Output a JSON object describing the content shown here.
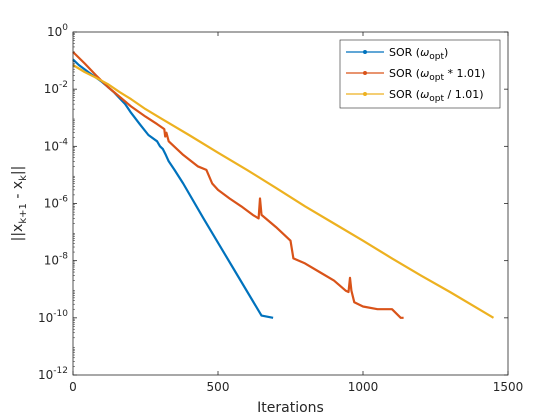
{
  "chart_data": {
    "type": "line",
    "title": "",
    "xlabel": "Iterations",
    "ylabel_parts": {
      "open": "||x",
      "sub1": "k+1",
      "mid": " - x",
      "sub2": "k",
      "close": "||"
    },
    "y_scale": "log",
    "xlim": [
      0,
      1500
    ],
    "ylim": [
      1e-12,
      1
    ],
    "x_ticks": [
      0,
      500,
      1000,
      1500
    ],
    "y_tick_exponents": [
      0,
      -2,
      -4,
      -6,
      -8,
      -10,
      -12
    ],
    "grid": false,
    "legend_position": "top-right",
    "series": [
      {
        "name": "SOR (ω_opt)",
        "legend_parts": [
          "SOR (",
          "ω",
          "opt",
          ")"
        ],
        "color": "#0072BD",
        "x": [
          0,
          20,
          60,
          100,
          140,
          180,
          200,
          230,
          260,
          290,
          300,
          310,
          320,
          330,
          350,
          380,
          450,
          550,
          650,
          690
        ],
        "y": [
          0.11,
          0.07,
          0.035,
          0.018,
          0.008,
          0.003,
          0.0015,
          0.0006,
          0.00025,
          0.00015,
          0.0001,
          8e-05,
          5e-05,
          3e-05,
          1.5e-05,
          5e-06,
          3e-07,
          6e-09,
          1.2e-10,
          1e-10
        ]
      },
      {
        "name": "SOR (ω_opt * 1.01)",
        "legend_parts": [
          "SOR (",
          "ω",
          "opt",
          " * 1.01)"
        ],
        "color": "#D95319",
        "x": [
          0,
          40,
          80,
          120,
          160,
          200,
          250,
          290,
          315,
          318,
          322,
          330,
          380,
          430,
          460,
          480,
          500,
          540,
          580,
          620,
          640,
          645,
          650,
          700,
          750,
          760,
          800,
          850,
          900,
          940,
          950,
          955,
          960,
          970,
          1000,
          1050,
          1100,
          1130,
          1140
        ],
        "y": [
          0.2,
          0.08,
          0.03,
          0.012,
          0.0055,
          0.0025,
          0.0011,
          0.0006,
          0.0004,
          0.00022,
          0.0003,
          0.00015,
          5e-05,
          2e-05,
          1.5e-05,
          5e-06,
          3e-06,
          1.5e-06,
          8e-07,
          4e-07,
          3e-07,
          1.5e-06,
          4e-07,
          1.5e-07,
          5e-08,
          1.2e-08,
          8e-09,
          4e-09,
          2e-09,
          9e-10,
          8e-10,
          2.5e-09,
          9e-10,
          3.5e-10,
          2.5e-10,
          2e-10,
          2e-10,
          1e-10,
          1e-10
        ]
      },
      {
        "name": "SOR (ω_opt / 1.01)",
        "legend_parts": [
          "SOR (",
          "ω",
          "opt",
          " / 1.01)"
        ],
        "color": "#EDB120",
        "x": [
          0,
          40,
          80,
          120,
          160,
          200,
          250,
          300,
          400,
          500,
          600,
          700,
          800,
          900,
          1000,
          1100,
          1200,
          1300,
          1400,
          1450
        ],
        "y": [
          0.07,
          0.04,
          0.025,
          0.015,
          0.008,
          0.0045,
          0.002,
          0.001,
          0.00025,
          6e-05,
          1.5e-05,
          3.5e-06,
          8e-07,
          2e-07,
          5e-08,
          1.2e-08,
          3e-09,
          8e-10,
          2e-10,
          1e-10
        ]
      }
    ]
  }
}
